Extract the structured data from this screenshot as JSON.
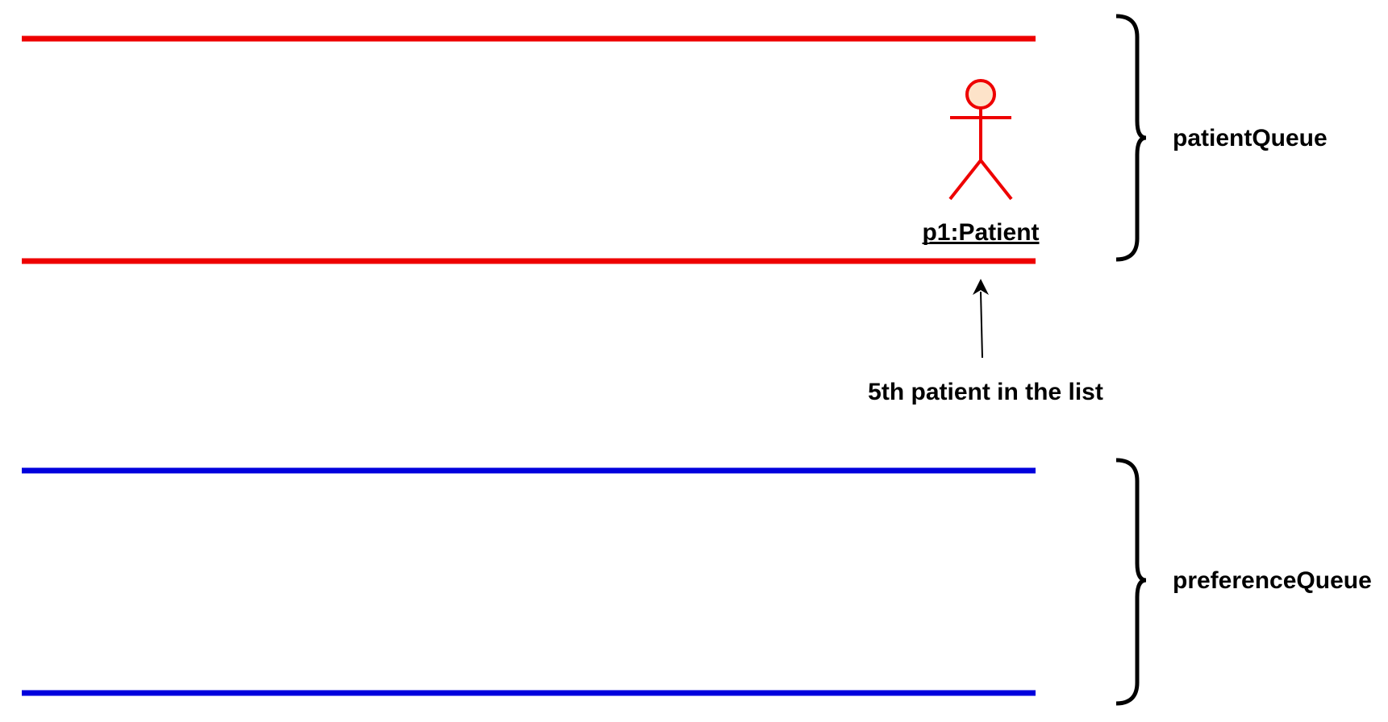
{
  "colors": {
    "patient_queue": "#ee0000",
    "preference_queue": "#0000dd",
    "actor_stroke": "#ee0000",
    "actor_head_fill": "#fde3c9",
    "text": "#000000"
  },
  "patient_queue": {
    "label": "patientQueue"
  },
  "preference_queue": {
    "label": "preferenceQueue"
  },
  "actor": {
    "icon": "stick-figure-icon",
    "label": "p1:Patient"
  },
  "pointer": {
    "label": "5th patient in the list"
  }
}
